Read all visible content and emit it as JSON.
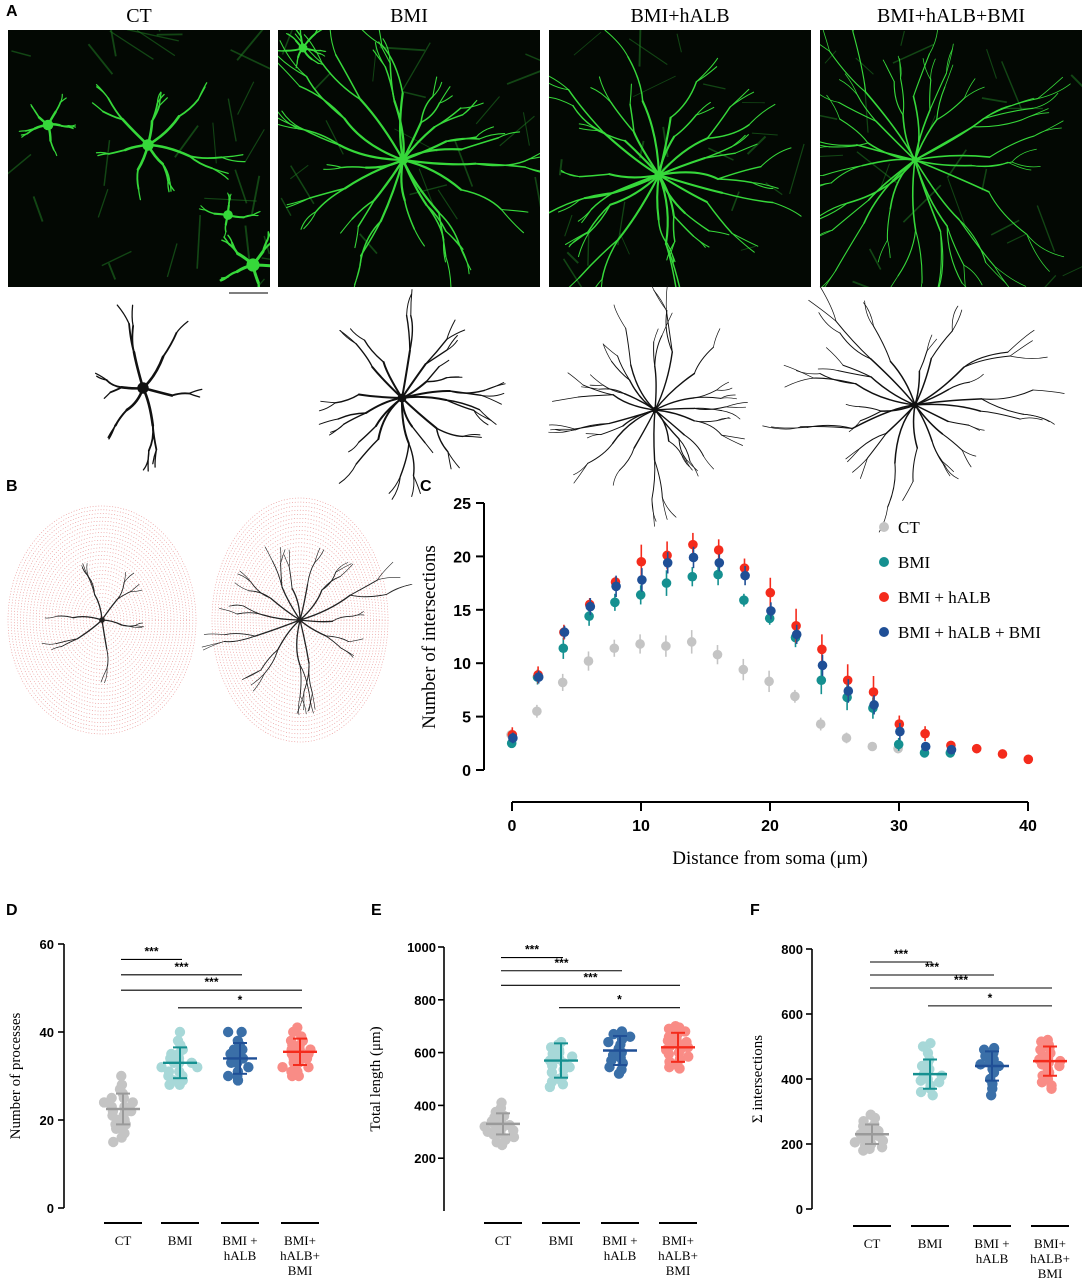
{
  "panel_letters": {
    "a": "A",
    "b": "B",
    "c": "C",
    "d": "D",
    "e": "E",
    "f": "F"
  },
  "micrograph_titles": [
    "CT",
    "BMI",
    "BMI+hALB",
    "BMI+hALB+BMI"
  ],
  "colors": {
    "ct": "#c4c4c4",
    "bmi": "#159090",
    "bmi_halb": "#f42b1c",
    "bmi_halb_bmi": "#1f4f96",
    "bmi_light": "#a7d8d8",
    "halb_mid": "#3a6fa8",
    "halb_bmi_light": "#f98c86",
    "sholl_circles": "#e88a8a",
    "fluorescence": "#36d83a"
  },
  "chart_data": [
    {
      "id": "C",
      "type": "scatter",
      "xlabel": "Distance from soma (μm)",
      "ylabel": "Number of intersections",
      "xlim": [
        0,
        40
      ],
      "ylim": [
        0,
        25
      ],
      "xticks": [
        0,
        10,
        20,
        30,
        40
      ],
      "yticks": [
        0,
        5,
        10,
        15,
        20,
        25
      ],
      "legend": "top-right",
      "series": [
        {
          "name": "CT",
          "color": "#c4c4c4",
          "x": [
            0,
            2,
            4,
            6,
            8,
            10,
            12,
            14,
            16,
            18,
            20,
            22,
            24,
            26,
            28,
            30
          ],
          "y": [
            3.3,
            5.5,
            8.2,
            10.2,
            11.4,
            11.8,
            11.6,
            12.0,
            10.8,
            9.4,
            8.3,
            6.9,
            4.3,
            3.0,
            2.2,
            2.0
          ],
          "err": [
            0.5,
            0.6,
            0.8,
            0.9,
            0.8,
            0.9,
            1.0,
            1.1,
            0.9,
            1.0,
            1.0,
            0.6,
            0.6,
            0.5,
            0.3,
            0.4
          ]
        },
        {
          "name": "BMI",
          "color": "#159090",
          "x": [
            0,
            2,
            4,
            6,
            8,
            10,
            12,
            14,
            16,
            18,
            20,
            22,
            24,
            26,
            28,
            30,
            32,
            34
          ],
          "y": [
            2.5,
            8.7,
            11.4,
            14.4,
            15.7,
            16.4,
            17.5,
            18.1,
            18.3,
            15.9,
            14.2,
            12.4,
            8.4,
            6.8,
            5.8,
            2.4,
            1.6,
            1.6
          ],
          "err": [
            0.4,
            0.7,
            1.0,
            0.9,
            0.8,
            0.9,
            1.2,
            0.9,
            1.0,
            0.6,
            0.6,
            0.9,
            1.3,
            1.2,
            1.0,
            0.6,
            0.4,
            0.4
          ]
        },
        {
          "name": "BMI + hALB",
          "color": "#f42b1c",
          "x": [
            0,
            2,
            4,
            6,
            8,
            10,
            12,
            14,
            16,
            18,
            20,
            22,
            24,
            26,
            28,
            30,
            32,
            34,
            36,
            38,
            40
          ],
          "y": [
            3.3,
            8.9,
            12.9,
            15.5,
            17.6,
            19.5,
            20.1,
            21.1,
            20.6,
            18.9,
            16.6,
            13.5,
            11.3,
            8.4,
            7.3,
            4.3,
            3.4,
            2.3,
            2.0,
            1.5,
            1.0
          ],
          "err": [
            0.7,
            0.8,
            0.7,
            0.6,
            0.5,
            1.6,
            1.3,
            1.1,
            1.0,
            0.9,
            1.4,
            1.6,
            1.4,
            1.5,
            1.5,
            0.8,
            0.7,
            0.4,
            0.3,
            0.3,
            0.2
          ]
        },
        {
          "name": "BMI + hALB + BMI",
          "color": "#1f4f96",
          "x": [
            0,
            2,
            4,
            6,
            8,
            10,
            12,
            14,
            16,
            18,
            20,
            22,
            24,
            26,
            28,
            30,
            32,
            34
          ],
          "y": [
            3.0,
            8.7,
            12.9,
            15.3,
            17.2,
            17.8,
            19.4,
            19.9,
            19.4,
            18.2,
            14.9,
            12.7,
            9.8,
            7.4,
            6.1,
            3.6,
            2.2,
            1.9
          ],
          "err": [
            0.5,
            0.6,
            0.6,
            0.8,
            1.0,
            1.1,
            1.0,
            1.0,
            0.8,
            0.9,
            0.8,
            0.9,
            1.0,
            1.1,
            0.9,
            0.8,
            0.4,
            0.3
          ]
        }
      ]
    },
    {
      "id": "D",
      "type": "scatter",
      "ylabel": "Number of processes",
      "ylim": [
        0,
        60
      ],
      "yticks": [
        0,
        20,
        40,
        60
      ],
      "categories": [
        "CT",
        "BMI",
        "BMI +\nhALB",
        "BMI+\nhALB+\nBMI"
      ],
      "means": [
        22.5,
        33,
        34,
        35.5
      ],
      "sd": [
        3.5,
        3.5,
        3.5,
        3.0
      ],
      "points": [
        [
          30,
          28,
          27,
          26,
          25,
          25,
          24,
          24,
          23,
          23,
          22,
          22,
          22,
          21,
          21,
          20,
          20,
          19,
          19,
          18,
          18,
          17,
          16,
          15
        ],
        [
          40,
          38,
          37,
          36,
          35,
          35,
          34,
          34,
          33,
          33,
          33,
          32,
          32,
          31,
          31,
          30,
          30,
          29,
          29,
          28,
          28
        ],
        [
          40,
          40,
          38,
          37,
          36,
          36,
          35,
          35,
          34,
          34,
          33,
          33,
          32,
          31,
          30,
          30,
          29
        ],
        [
          41,
          40,
          39,
          38,
          38,
          37,
          37,
          36,
          36,
          36,
          35,
          35,
          35,
          34,
          34,
          34,
          33,
          33,
          32,
          32,
          31,
          31,
          30,
          30
        ]
      ],
      "comparisons": [
        {
          "from": 0,
          "to": 1,
          "label": "***",
          "y": 56.5
        },
        {
          "from": 0,
          "to": 2,
          "label": "***",
          "y": 53
        },
        {
          "from": 0,
          "to": 3,
          "label": "***",
          "y": 49.5
        },
        {
          "from": 1,
          "to": 3,
          "label": "*",
          "y": 45.5
        }
      ]
    },
    {
      "id": "E",
      "type": "scatter",
      "ylabel": "Total length (μm)",
      "ylim": [
        0,
        1000
      ],
      "yticks": [
        200,
        400,
        600,
        800,
        1000
      ],
      "categories": [
        "CT",
        "BMI",
        "BMI +\nhALB",
        "BMI+\nhALB+\nBMI"
      ],
      "means": [
        330,
        570,
        608,
        620
      ],
      "sd": [
        40,
        65,
        55,
        55
      ],
      "points": [
        [
          410,
          390,
          375,
          360,
          355,
          345,
          340,
          335,
          330,
          325,
          320,
          315,
          310,
          305,
          300,
          295,
          290,
          280,
          270,
          260,
          250
        ],
        [
          640,
          630,
          620,
          610,
          600,
          595,
          585,
          575,
          570,
          560,
          550,
          545,
          535,
          525,
          510,
          500,
          490,
          480,
          470
        ],
        [
          680,
          675,
          670,
          660,
          650,
          640,
          630,
          615,
          600,
          590,
          580,
          570,
          560,
          545,
          535,
          520
        ],
        [
          700,
          695,
          690,
          680,
          670,
          660,
          650,
          645,
          640,
          630,
          625,
          620,
          615,
          610,
          600,
          595,
          585,
          575,
          565,
          555,
          545,
          540
        ]
      ],
      "comparisons": [
        {
          "from": 0,
          "to": 1,
          "label": "***",
          "y": 960
        },
        {
          "from": 0,
          "to": 2,
          "label": "***",
          "y": 910
        },
        {
          "from": 0,
          "to": 3,
          "label": "***",
          "y": 855
        },
        {
          "from": 1,
          "to": 3,
          "label": "*",
          "y": 770
        }
      ]
    },
    {
      "id": "F",
      "type": "scatter",
      "ylabel": "Σ intersections",
      "ylim": [
        0,
        800
      ],
      "yticks": [
        0,
        200,
        400,
        600,
        800
      ],
      "categories": [
        "CT",
        "BMI",
        "BMI +\nhALB",
        "BMI+\nhALB+\nBMI"
      ],
      "means": [
        230,
        415,
        440,
        455
      ],
      "sd": [
        30,
        45,
        45,
        45
      ],
      "points": [
        [
          290,
          280,
          270,
          260,
          255,
          250,
          245,
          240,
          235,
          230,
          225,
          220,
          215,
          210,
          205,
          200,
          195,
          190,
          185,
          180
        ],
        [
          510,
          500,
          480,
          460,
          450,
          440,
          430,
          420,
          415,
          410,
          400,
          395,
          390,
          380,
          370,
          360,
          350
        ],
        [
          495,
          490,
          480,
          470,
          460,
          450,
          445,
          440,
          430,
          420,
          400,
          385,
          370,
          350
        ],
        [
          520,
          515,
          505,
          495,
          490,
          480,
          470,
          465,
          460,
          455,
          450,
          445,
          440,
          430,
          420,
          410,
          400,
          390,
          380,
          370
        ]
      ],
      "comparisons": [
        {
          "from": 0,
          "to": 1,
          "label": "***",
          "y": 760
        },
        {
          "from": 0,
          "to": 2,
          "label": "***",
          "y": 720
        },
        {
          "from": 0,
          "to": 3,
          "label": "***",
          "y": 680
        },
        {
          "from": 1,
          "to": 3,
          "label": "*",
          "y": 625
        }
      ]
    }
  ]
}
